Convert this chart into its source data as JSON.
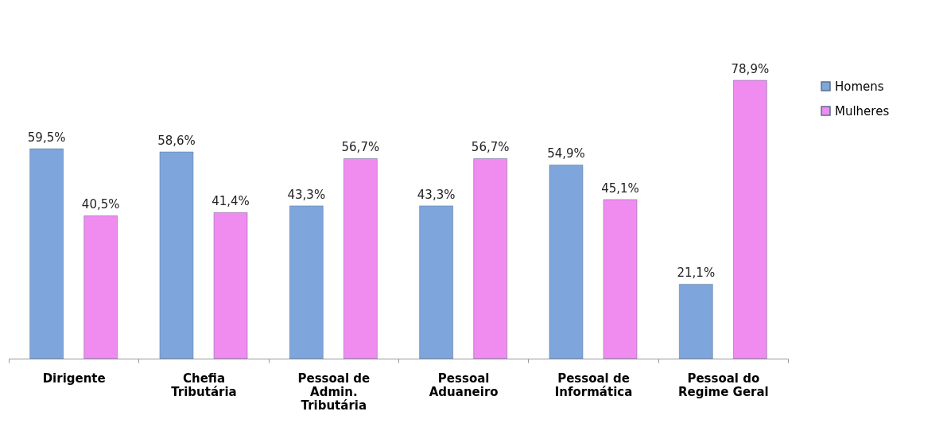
{
  "chart_data": {
    "type": "bar",
    "categories": [
      "Dirigente",
      "Chefia\nTributária",
      "Pessoal de\nAdmin.\nTributária",
      "Pessoal\nAduaneiro",
      "Pessoal de\nInformática",
      "Pessoal do\nRegime Geral"
    ],
    "series": [
      {
        "name": "Homens",
        "color": "#7fa6dc",
        "values": [
          59.5,
          58.6,
          43.3,
          43.3,
          54.9,
          21.1
        ],
        "value_labels": [
          "59,5%",
          "58,6%",
          "43,3%",
          "43,3%",
          "54,9%",
          "21,1%"
        ]
      },
      {
        "name": "Mulheres",
        "color": "#f08cf0",
        "values": [
          40.5,
          41.4,
          56.7,
          56.7,
          45.1,
          78.9
        ],
        "value_labels": [
          "40,5%",
          "41,4%",
          "56,7%",
          "56,7%",
          "45,1%",
          "78,9%"
        ]
      }
    ],
    "legend": "top right",
    "grid": false
  }
}
